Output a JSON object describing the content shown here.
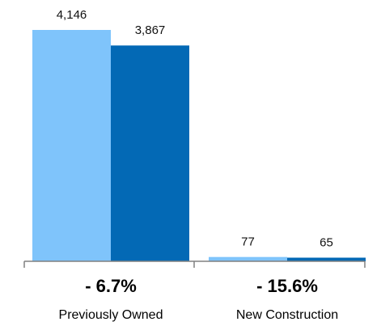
{
  "chart_data": {
    "type": "bar",
    "categories": [
      "Previously Owned",
      "New Construction"
    ],
    "series": [
      {
        "values": [
          4146,
          77
        ],
        "color": "#7fc4fb"
      },
      {
        "values": [
          3867,
          65
        ],
        "color": "#0369b5"
      }
    ],
    "value_labels": [
      [
        "4,146",
        "77"
      ],
      [
        "3,867",
        "65"
      ]
    ],
    "changes": [
      "- 6.7%",
      "- 15.6%"
    ],
    "ylim": [
      0,
      4146
    ],
    "grid": false,
    "legend": "none",
    "axis_color": "#808080"
  }
}
